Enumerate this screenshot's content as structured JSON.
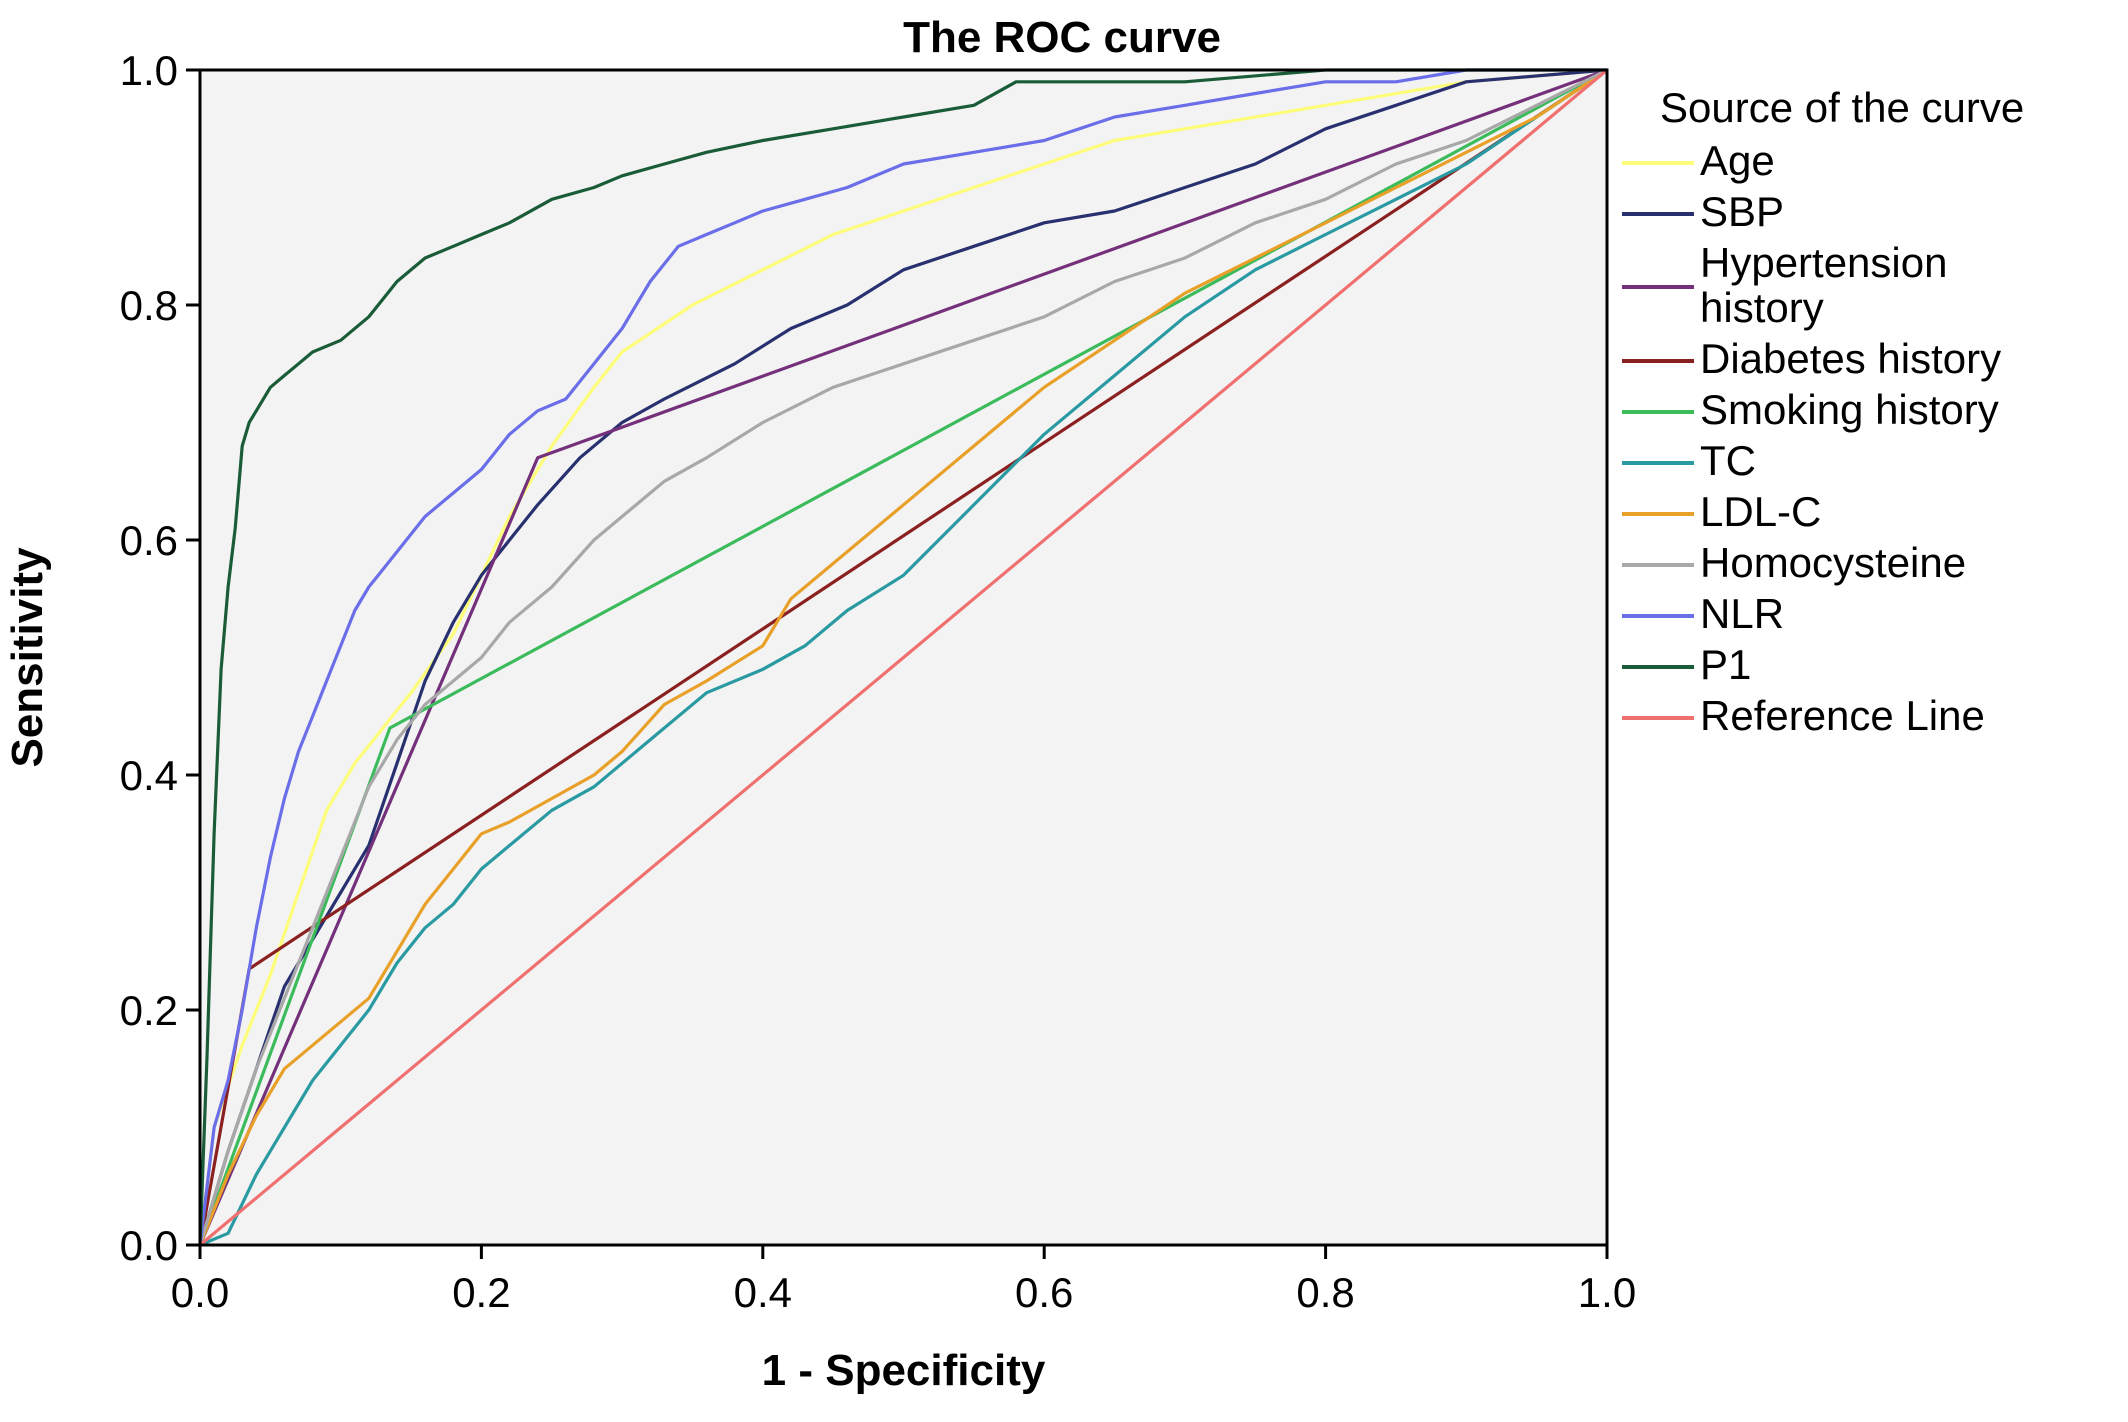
{
  "chart_data": {
    "type": "line",
    "title": "The ROC curve",
    "xlabel": "1 - Specificity",
    "ylabel": "Sensitivity",
    "xlim": [
      0,
      1
    ],
    "ylim": [
      0,
      1
    ],
    "x_ticks": [
      "0.0",
      "0.2",
      "0.4",
      "0.6",
      "0.8",
      "1.0"
    ],
    "y_ticks": [
      "0.0",
      "0.2",
      "0.4",
      "0.6",
      "0.8",
      "1.0"
    ],
    "grid": false,
    "plot_background": "#f3f3f3",
    "legend": {
      "title": "Source of the curve",
      "placement": "right"
    },
    "series": [
      {
        "name": "Age",
        "color": "#fdfd7a",
        "x": [
          0,
          0.01,
          0.03,
          0.05,
          0.07,
          0.09,
          0.11,
          0.13,
          0.15,
          0.18,
          0.2,
          0.22,
          0.25,
          0.28,
          0.3,
          0.35,
          0.4,
          0.45,
          0.5,
          0.55,
          0.6,
          0.65,
          0.7,
          0.8,
          0.9,
          1.0
        ],
        "y": [
          0,
          0.1,
          0.17,
          0.23,
          0.3,
          0.37,
          0.41,
          0.44,
          0.47,
          0.52,
          0.57,
          0.62,
          0.68,
          0.73,
          0.76,
          0.8,
          0.83,
          0.86,
          0.88,
          0.9,
          0.92,
          0.94,
          0.95,
          0.97,
          0.99,
          1.0
        ]
      },
      {
        "name": "SBP",
        "color": "#283070",
        "x": [
          0,
          0.02,
          0.04,
          0.06,
          0.08,
          0.1,
          0.12,
          0.14,
          0.16,
          0.18,
          0.2,
          0.22,
          0.24,
          0.27,
          0.3,
          0.33,
          0.38,
          0.42,
          0.46,
          0.5,
          0.55,
          0.6,
          0.65,
          0.7,
          0.75,
          0.8,
          0.85,
          0.9,
          1.0
        ],
        "y": [
          0,
          0.08,
          0.15,
          0.22,
          0.26,
          0.3,
          0.34,
          0.41,
          0.48,
          0.53,
          0.57,
          0.6,
          0.63,
          0.67,
          0.7,
          0.72,
          0.75,
          0.78,
          0.8,
          0.83,
          0.85,
          0.87,
          0.88,
          0.9,
          0.92,
          0.95,
          0.97,
          0.99,
          1.0
        ]
      },
      {
        "name": "Hypertension history",
        "color": "#74307a",
        "x": [
          0,
          0.24,
          1.0
        ],
        "y": [
          0,
          0.67,
          1.0
        ]
      },
      {
        "name": "Diabetes history",
        "color": "#8b2020",
        "x": [
          0,
          0.035,
          1.0
        ],
        "y": [
          0,
          0.235,
          1.0
        ]
      },
      {
        "name": "Smoking history",
        "color": "#3cbb5c",
        "x": [
          0,
          0.135,
          1.0
        ],
        "y": [
          0,
          0.44,
          1.0
        ]
      },
      {
        "name": "TC",
        "color": "#2a9aa2",
        "x": [
          0,
          0.02,
          0.04,
          0.06,
          0.08,
          0.1,
          0.12,
          0.14,
          0.16,
          0.18,
          0.2,
          0.22,
          0.25,
          0.28,
          0.3,
          0.33,
          0.36,
          0.4,
          0.43,
          0.46,
          0.5,
          0.55,
          0.6,
          0.65,
          0.7,
          0.75,
          0.8,
          0.85,
          0.9,
          0.95,
          1.0
        ],
        "y": [
          0,
          0.01,
          0.06,
          0.1,
          0.14,
          0.17,
          0.2,
          0.24,
          0.27,
          0.29,
          0.32,
          0.34,
          0.37,
          0.39,
          0.41,
          0.44,
          0.47,
          0.49,
          0.51,
          0.54,
          0.57,
          0.63,
          0.69,
          0.74,
          0.79,
          0.83,
          0.86,
          0.89,
          0.92,
          0.96,
          1.0
        ]
      },
      {
        "name": "LDL-C",
        "color": "#e8a028",
        "x": [
          0,
          0.02,
          0.04,
          0.06,
          0.08,
          0.1,
          0.12,
          0.14,
          0.16,
          0.18,
          0.2,
          0.22,
          0.25,
          0.28,
          0.3,
          0.33,
          0.36,
          0.4,
          0.42,
          0.45,
          0.5,
          0.55,
          0.6,
          0.65,
          0.7,
          0.75,
          0.8,
          0.85,
          0.9,
          0.95,
          1.0
        ],
        "y": [
          0,
          0.06,
          0.11,
          0.15,
          0.17,
          0.19,
          0.21,
          0.25,
          0.29,
          0.32,
          0.35,
          0.36,
          0.38,
          0.4,
          0.42,
          0.46,
          0.48,
          0.51,
          0.55,
          0.58,
          0.63,
          0.68,
          0.73,
          0.77,
          0.81,
          0.84,
          0.87,
          0.9,
          0.93,
          0.96,
          1.0
        ]
      },
      {
        "name": "Homocysteine",
        "color": "#a8a8a8",
        "x": [
          0,
          0.02,
          0.04,
          0.06,
          0.08,
          0.1,
          0.12,
          0.14,
          0.16,
          0.18,
          0.2,
          0.22,
          0.25,
          0.28,
          0.3,
          0.33,
          0.36,
          0.4,
          0.45,
          0.5,
          0.55,
          0.6,
          0.65,
          0.7,
          0.75,
          0.8,
          0.85,
          0.9,
          0.95,
          1.0
        ],
        "y": [
          0,
          0.08,
          0.15,
          0.21,
          0.27,
          0.33,
          0.39,
          0.43,
          0.46,
          0.48,
          0.5,
          0.53,
          0.56,
          0.6,
          0.62,
          0.65,
          0.67,
          0.7,
          0.73,
          0.75,
          0.77,
          0.79,
          0.82,
          0.84,
          0.87,
          0.89,
          0.92,
          0.94,
          0.97,
          1.0
        ]
      },
      {
        "name": "NLR",
        "color": "#6a6ee8",
        "x": [
          0,
          0.01,
          0.02,
          0.03,
          0.04,
          0.05,
          0.06,
          0.07,
          0.08,
          0.09,
          0.1,
          0.11,
          0.12,
          0.14,
          0.16,
          0.18,
          0.2,
          0.22,
          0.24,
          0.26,
          0.28,
          0.3,
          0.32,
          0.34,
          0.36,
          0.38,
          0.4,
          0.43,
          0.46,
          0.5,
          0.55,
          0.6,
          0.65,
          0.7,
          0.75,
          0.8,
          0.85,
          0.9,
          0.95,
          1.0
        ],
        "y": [
          0,
          0.1,
          0.14,
          0.2,
          0.27,
          0.33,
          0.38,
          0.42,
          0.45,
          0.48,
          0.51,
          0.54,
          0.56,
          0.59,
          0.62,
          0.64,
          0.66,
          0.69,
          0.71,
          0.72,
          0.75,
          0.78,
          0.82,
          0.85,
          0.86,
          0.87,
          0.88,
          0.89,
          0.9,
          0.92,
          0.93,
          0.94,
          0.96,
          0.97,
          0.98,
          0.99,
          0.99,
          1.0,
          1.0,
          1.0
        ]
      },
      {
        "name": "P1",
        "color": "#1a5c38",
        "x": [
          0,
          0.005,
          0.01,
          0.015,
          0.02,
          0.025,
          0.03,
          0.035,
          0.04,
          0.05,
          0.06,
          0.07,
          0.08,
          0.1,
          0.12,
          0.14,
          0.16,
          0.18,
          0.2,
          0.22,
          0.25,
          0.28,
          0.3,
          0.33,
          0.36,
          0.4,
          0.45,
          0.5,
          0.55,
          0.58,
          0.6,
          0.7,
          0.8,
          0.9,
          1.0
        ],
        "y": [
          0,
          0.16,
          0.35,
          0.49,
          0.56,
          0.61,
          0.68,
          0.7,
          0.71,
          0.73,
          0.74,
          0.75,
          0.76,
          0.77,
          0.79,
          0.82,
          0.84,
          0.85,
          0.86,
          0.87,
          0.89,
          0.9,
          0.91,
          0.92,
          0.93,
          0.94,
          0.95,
          0.96,
          0.97,
          0.99,
          0.99,
          0.99,
          1.0,
          1.0,
          1.0
        ]
      },
      {
        "name": "Reference Line",
        "color": "#f07070",
        "x": [
          0,
          1.0
        ],
        "y": [
          0,
          1.0
        ]
      }
    ]
  }
}
